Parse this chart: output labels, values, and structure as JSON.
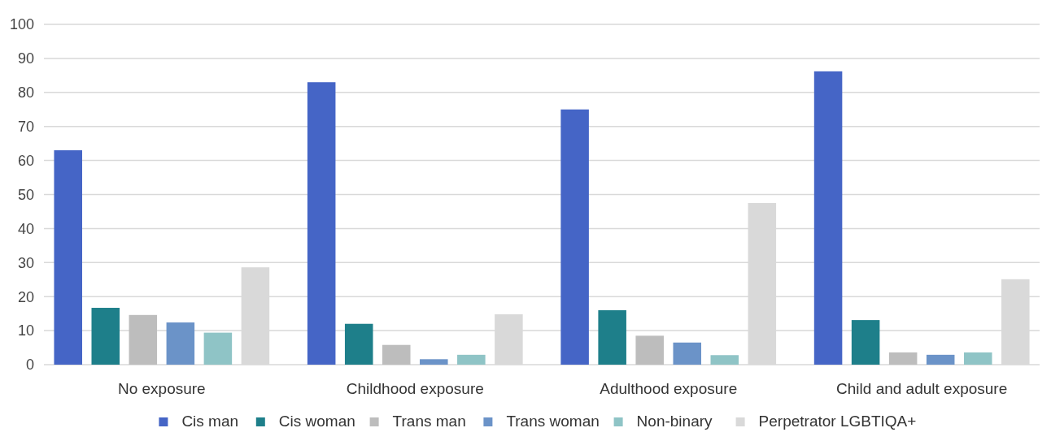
{
  "chart_data": {
    "type": "bar",
    "categories": [
      "No exposure",
      "Childhood exposure",
      "Adulthood exposure",
      "Child and adult exposure"
    ],
    "series": [
      {
        "name": "Cis man",
        "color": "#4565c6",
        "values": [
          63,
          83,
          75,
          86.2
        ]
      },
      {
        "name": "Cis woman",
        "color": "#1e7f8a",
        "values": [
          16.7,
          12,
          16,
          13.1
        ]
      },
      {
        "name": "Trans man",
        "color": "#bdbdbd",
        "values": [
          14.6,
          5.8,
          8.5,
          3.6
        ]
      },
      {
        "name": "Trans woman",
        "color": "#6b93c8",
        "values": [
          12.4,
          1.6,
          6.5,
          2.9
        ]
      },
      {
        "name": "Non-binary",
        "color": "#8fc4c6",
        "values": [
          9.4,
          2.9,
          2.8,
          3.6
        ]
      },
      {
        "name": "Perpetrator LGBTIQA+",
        "color": "#d9d9d9",
        "values": [
          28.6,
          14.8,
          47.5,
          25.1
        ]
      }
    ],
    "ylim": [
      0,
      100
    ],
    "yticks": [
      0,
      10,
      20,
      30,
      40,
      50,
      60,
      70,
      80,
      90,
      100
    ],
    "grid": "y",
    "legend": "bottom"
  }
}
